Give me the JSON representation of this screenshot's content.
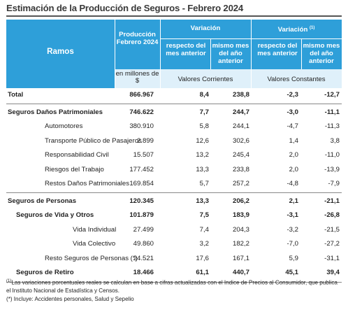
{
  "title": "Estimación de la Producción de Seguros - Febrero 2024",
  "header": {
    "ramos": "Ramos",
    "produccion": "Producción Febrero 2024",
    "variacion": "Variación",
    "variacion_sup": "Variación",
    "sup_mark": "(1)",
    "col_respecto": "respecto del mes anterior",
    "col_mismo": "mismo mes del año anterior",
    "unit": "en millones de $",
    "valores_corrientes": "Valores Corrientes",
    "valores_constantes": "Valores Constantes"
  },
  "rows": [
    {
      "name": "Total",
      "prod": "866.967",
      "v1": "8,4",
      "v2": "238,8",
      "v3": "-2,3",
      "v4": "-12,7",
      "bold": true,
      "indent": 0
    },
    {
      "name": "Seguros Daños Patrimoniales",
      "prod": "746.622",
      "v1": "7,7",
      "v2": "244,7",
      "v3": "-3,0",
      "v4": "-11,1",
      "bold": true,
      "indent": 0
    },
    {
      "name": "Automotores",
      "prod": "380.910",
      "v1": "5,8",
      "v2": "244,1",
      "v3": "-4,7",
      "v4": "-11,3",
      "bold": false,
      "indent": 2
    },
    {
      "name": "Transporte Público de Pasajeros",
      "prod": "2.899",
      "v1": "12,6",
      "v2": "302,6",
      "v3": "1,4",
      "v4": "3,8",
      "bold": false,
      "indent": 2
    },
    {
      "name": "Responsabilidad Civil",
      "prod": "15.507",
      "v1": "13,2",
      "v2": "245,4",
      "v3": "2,0",
      "v4": "-11,0",
      "bold": false,
      "indent": 2
    },
    {
      "name": "Riesgos del Trabajo",
      "prod": "177.452",
      "v1": "13,3",
      "v2": "233,8",
      "v3": "2,0",
      "v4": "-13,9",
      "bold": false,
      "indent": 2
    },
    {
      "name": "Restos Daños Patrimoniales",
      "prod": "169.854",
      "v1": "5,7",
      "v2": "257,2",
      "v3": "-4,8",
      "v4": "-7,9",
      "bold": false,
      "indent": 2
    },
    {
      "name": "Seguros de Personas",
      "prod": "120.345",
      "v1": "13,3",
      "v2": "206,2",
      "v3": "2,1",
      "v4": "-21,1",
      "bold": true,
      "indent": 0
    },
    {
      "name": "Seguros de Vida y Otros",
      "prod": "101.879",
      "v1": "7,5",
      "v2": "183,9",
      "v3": "-3,1",
      "v4": "-26,8",
      "bold": true,
      "indent": 1
    },
    {
      "name": "Vida Individual",
      "prod": "27.499",
      "v1": "7,4",
      "v2": "204,3",
      "v3": "-3,2",
      "v4": "-21,5",
      "bold": false,
      "indent": 3
    },
    {
      "name": "Vida Colectivo",
      "prod": "49.860",
      "v1": "3,2",
      "v2": "182,2",
      "v3": "-7,0",
      "v4": "-27,2",
      "bold": false,
      "indent": 3
    },
    {
      "name": "Resto Seguros de Personas (*)",
      "prod": "24.521",
      "v1": "17,6",
      "v2": "167,1",
      "v3": "5,9",
      "v4": "-31,1",
      "bold": false,
      "indent": 2
    },
    {
      "name": "Seguros de Retiro",
      "prod": "18.466",
      "v1": "61,1",
      "v2": "440,7",
      "v3": "45,1",
      "v4": "39,4",
      "bold": true,
      "indent": 1
    }
  ],
  "notes": {
    "note1_mark": "(1)",
    "note1": "Las variaciones porcentuales reales se calculan en base a cifras actualizadas con  el Indice de Precios al Consumidor, que publica el Instituto Nacional de Estadística y  Censos.",
    "note2": "(*) Incluye: Accidentes personales, Salud y Sepelio"
  }
}
